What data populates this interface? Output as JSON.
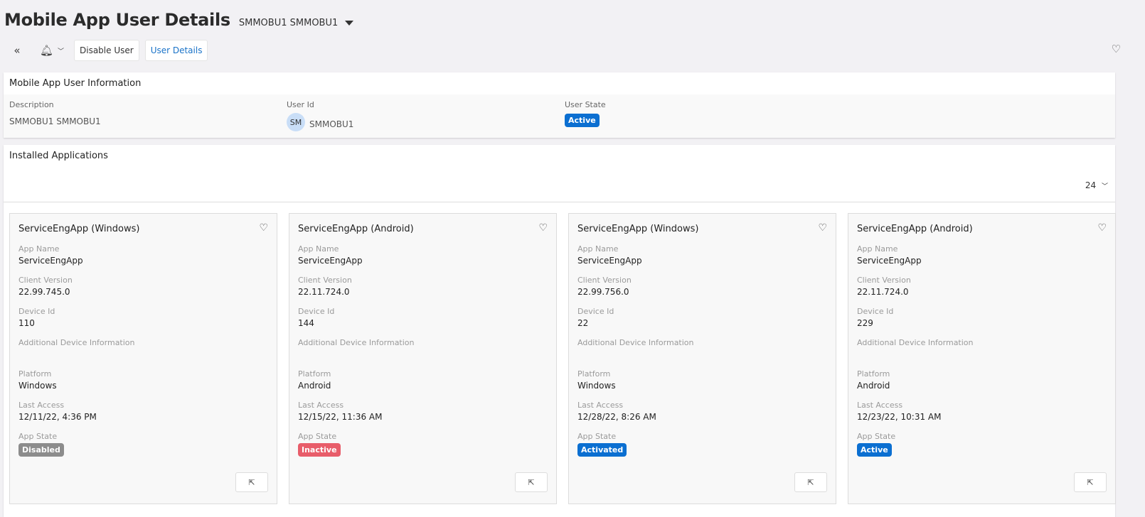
{
  "header": {
    "title": "Mobile App User Details",
    "record": "SMMOBU1 SMMOBU1"
  },
  "toolbar": {
    "disable_user": "Disable User",
    "user_details": "User Details"
  },
  "info": {
    "title": "Mobile App User Information",
    "description_label": "Description",
    "description": "SMMOBU1 SMMOBU1",
    "user_id_label": "User Id",
    "avatar": "SM",
    "user_id": "SMMOBU1",
    "user_state_label": "User State",
    "user_state": "Active",
    "user_state_color": "#0b6fd1"
  },
  "apps": {
    "title": "Installed Applications",
    "page_size": "24",
    "labels": {
      "app_name": "App Name",
      "client_version": "Client Version",
      "device_id": "Device Id",
      "additional": "Additional Device Information",
      "platform": "Platform",
      "last_access": "Last Access",
      "app_state": "App State"
    },
    "cards": [
      {
        "title": "ServiceEngApp (Windows)",
        "app_name": "ServiceEngApp",
        "client_version": "22.99.745.0",
        "device_id": "110",
        "additional": "",
        "platform": "Windows",
        "last_access": "12/11/22, 4:36 PM",
        "app_state": "Disabled",
        "state_color": "#8c8c8c"
      },
      {
        "title": "ServiceEngApp (Android)",
        "app_name": "ServiceEngApp",
        "client_version": "22.11.724.0",
        "device_id": "144",
        "additional": "",
        "platform": "Android",
        "last_access": "12/15/22, 11:36 AM",
        "app_state": "Inactive",
        "state_color": "#e85d6a"
      },
      {
        "title": "ServiceEngApp (Windows)",
        "app_name": "ServiceEngApp",
        "client_version": "22.99.756.0",
        "device_id": "22",
        "additional": "",
        "platform": "Windows",
        "last_access": "12/28/22, 8:26 AM",
        "app_state": "Activated",
        "state_color": "#0b6fd1"
      },
      {
        "title": "ServiceEngApp (Android)",
        "app_name": "ServiceEngApp",
        "client_version": "22.11.724.0",
        "device_id": "229",
        "additional": "",
        "platform": "Android",
        "last_access": "12/23/22, 10:31 AM",
        "app_state": "Active",
        "state_color": "#0b6fd1"
      }
    ]
  }
}
